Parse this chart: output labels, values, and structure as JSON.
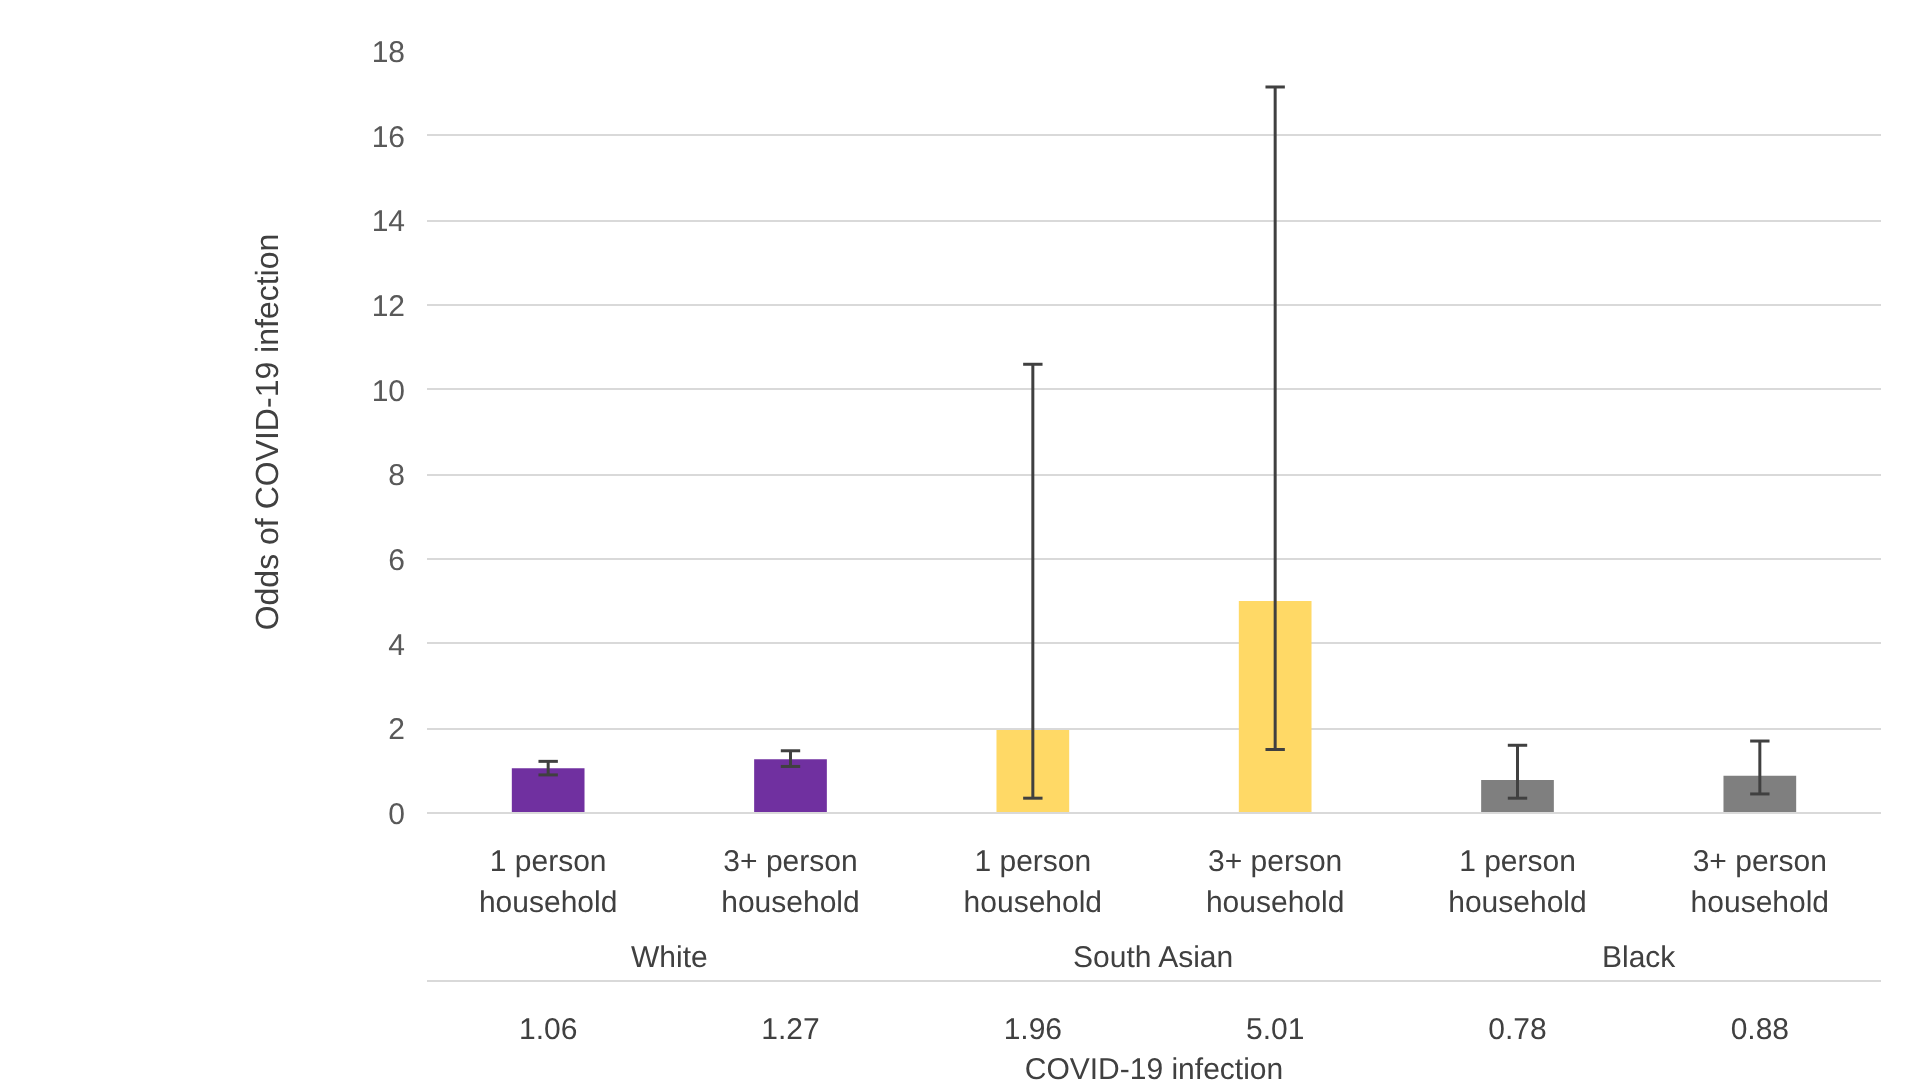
{
  "chart_data": {
    "type": "bar",
    "ylabel": "Odds of COVID-19 infection",
    "categories": [
      "1 person\nhousehold",
      "3+ person\nhousehold",
      "1 person\nhousehold",
      "3+ person\nhousehold",
      "1 person\nhousehold",
      "3+ person\nhousehold"
    ],
    "series": [
      {
        "name": "COVID-19 infection",
        "colors": [
          "#7030a0",
          "#7030a0",
          "#ffd966",
          "#ffd966",
          "#7f7f7f",
          "#7f7f7f"
        ],
        "values": [
          1.06,
          1.27,
          1.96,
          5.01,
          0.78,
          0.88
        ],
        "errors": [
          [
            0.9,
            1.22
          ],
          [
            1.1,
            1.47
          ],
          [
            0.35,
            10.6
          ],
          [
            1.5,
            17.15
          ],
          [
            0.35,
            1.6
          ],
          [
            0.45,
            1.7
          ]
        ]
      }
    ],
    "annotations": [
      "White",
      "South Asian",
      "Black"
    ],
    "data_labels": true,
    "ylim": [
      0,
      18
    ],
    "yticks": [
      0,
      2,
      4,
      6,
      8,
      10,
      12,
      14,
      16,
      18
    ],
    "grid": "y"
  }
}
